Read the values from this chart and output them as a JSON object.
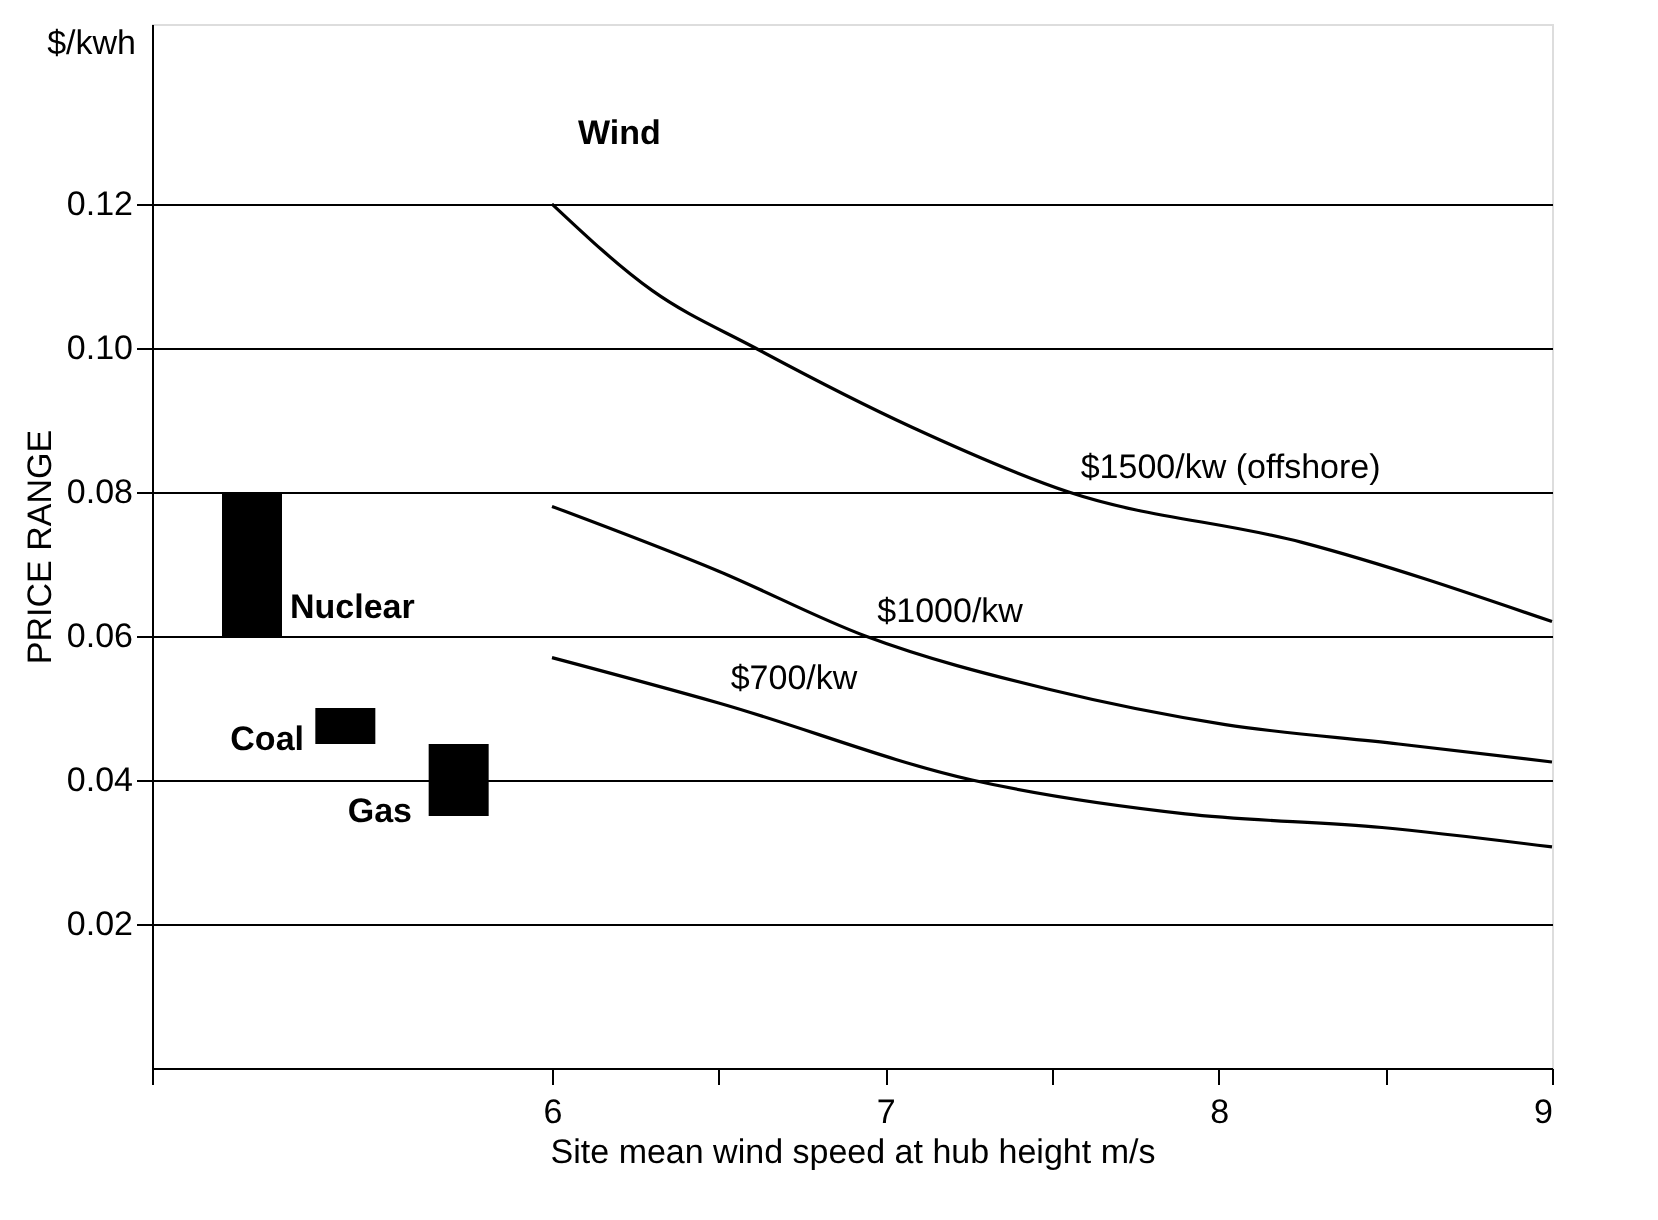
{
  "chart_data": {
    "type": "line",
    "xlabel": "Site mean wind speed at hub height m/s",
    "ylabel": "PRICE RANGE",
    "annotations": [
      "$/kwh",
      "Wind",
      "Nuclear",
      "Coal",
      "Gas"
    ],
    "xlim": [
      4.8,
      9.0
    ],
    "xticks": [
      {
        "value": 4.8,
        "label": null
      },
      6,
      {
        "value": 6.5,
        "label": null
      },
      7,
      {
        "value": 7.5,
        "label": null
      },
      8,
      {
        "value": 8.5,
        "label": null
      },
      9
    ],
    "ylim": [
      0,
      0.145
    ],
    "yticks": [
      0.02,
      0.04,
      0.06,
      0.08,
      {
        "value": 0.1,
        "label": "0.10"
      },
      0.12
    ],
    "grid": "y",
    "series": [
      {
        "type": "bar",
        "color": "#000000",
        "x": [
          5.1,
          5.38,
          5.72
        ],
        "base": [
          0.06,
          0.045,
          0.035
        ],
        "values": [
          0.02,
          0.005,
          0.01
        ]
      },
      {
        "name": "$1500/kw (offshore)",
        "color": "#000000",
        "x": [
          6,
          6.3,
          6.61,
          7.08,
          7.55,
          8.25,
          9.0
        ],
        "values": [
          0.12,
          0.108,
          0.1,
          0.089,
          0.08,
          0.073,
          0.062
        ]
      },
      {
        "name": "$1000/kw",
        "color": "#000000",
        "x": [
          6,
          6.5,
          6.94,
          7.49,
          8.02,
          8.54,
          9.0
        ],
        "values": [
          0.078,
          0.069,
          0.06,
          0.0526,
          0.0477,
          0.045,
          0.0425
        ]
      },
      {
        "name": "$700/kw",
        "color": "#000000",
        "x": [
          6,
          6.5,
          7.26,
          7.9,
          8.49,
          9.0
        ],
        "values": [
          0.057,
          0.0507,
          0.04,
          0.0353,
          0.0334,
          0.0307
        ]
      }
    ]
  }
}
